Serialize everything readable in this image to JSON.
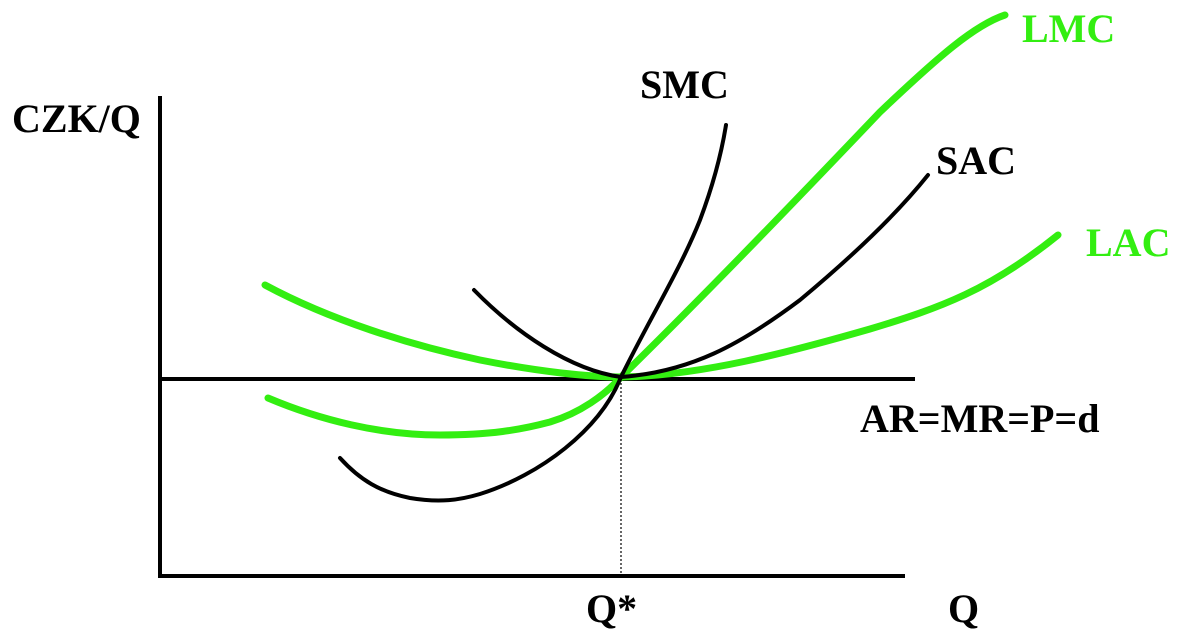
{
  "labels": {
    "y_axis": "CZK/Q",
    "x_axis": "Q",
    "q_star": "Q*",
    "smc": "SMC",
    "sac": "SAC",
    "lmc": "LMC",
    "lac": "LAC",
    "demand": "AR=MR=P=d"
  },
  "colors": {
    "short_run": "#000000",
    "long_run": "#33ee11",
    "axes": "#000000"
  }
}
